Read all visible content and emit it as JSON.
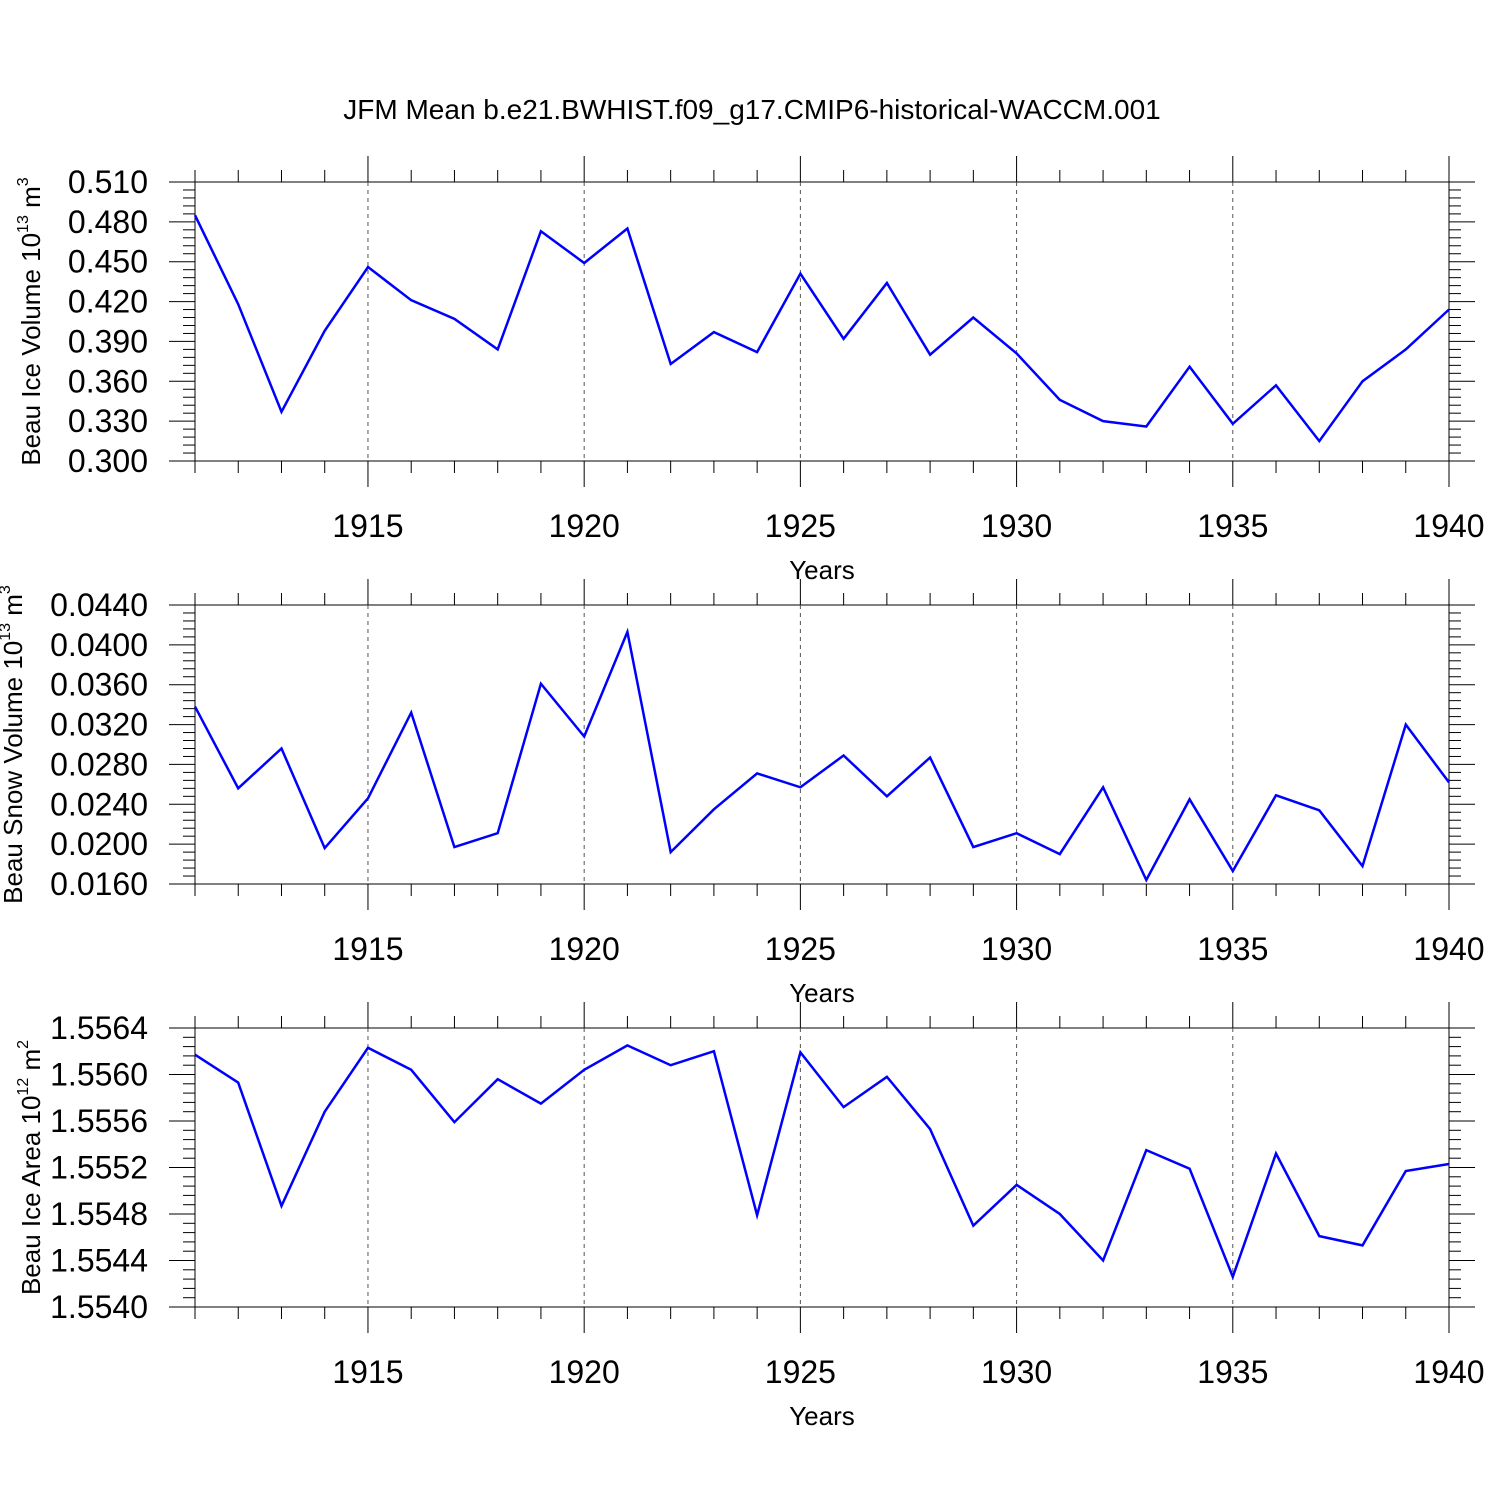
{
  "title": "JFM Mean b.e21.BWHIST.f09_g17.CMIP6-historical-WACCM.001",
  "line_color": "#0000ff",
  "chart_data": [
    {
      "type": "line",
      "ylabel_main": "Beau Ice Volume 10",
      "ylabel_exp": "13",
      "ylabel_unit": " m",
      "ylabel_unit_exp": "3",
      "xlabel": "Years",
      "xlim": [
        1911,
        1940
      ],
      "ylim": [
        0.3,
        0.51
      ],
      "x_ticks": [
        1915,
        1920,
        1925,
        1930,
        1935,
        1940
      ],
      "y_ticks": [
        0.3,
        0.33,
        0.36,
        0.39,
        0.42,
        0.45,
        0.48,
        0.51
      ],
      "y_tick_labels": [
        "0.300",
        "0.330",
        "0.360",
        "0.390",
        "0.420",
        "0.450",
        "0.480",
        "0.510"
      ],
      "x": [
        1911,
        1912,
        1913,
        1914,
        1915,
        1916,
        1917,
        1918,
        1919,
        1920,
        1921,
        1922,
        1923,
        1924,
        1925,
        1926,
        1927,
        1928,
        1929,
        1930,
        1931,
        1932,
        1933,
        1934,
        1935,
        1936,
        1937,
        1938,
        1939,
        1940
      ],
      "values": [
        0.485,
        0.418,
        0.337,
        0.398,
        0.446,
        0.421,
        0.407,
        0.384,
        0.473,
        0.449,
        0.475,
        0.373,
        0.397,
        0.382,
        0.441,
        0.392,
        0.434,
        0.38,
        0.408,
        0.381,
        0.346,
        0.33,
        0.326,
        0.371,
        0.328,
        0.357,
        0.315,
        0.36,
        0.384,
        0.414
      ]
    },
    {
      "type": "line",
      "ylabel_main": "Beau Snow Volume 10",
      "ylabel_exp": "13",
      "ylabel_unit": " m",
      "ylabel_unit_exp": "3",
      "xlabel": "Years",
      "xlim": [
        1911,
        1940
      ],
      "ylim": [
        0.016,
        0.044
      ],
      "x_ticks": [
        1915,
        1920,
        1925,
        1930,
        1935,
        1940
      ],
      "y_ticks": [
        0.016,
        0.02,
        0.024,
        0.028,
        0.032,
        0.036,
        0.04,
        0.044
      ],
      "y_tick_labels": [
        "0.0160",
        "0.0200",
        "0.0240",
        "0.0280",
        "0.0320",
        "0.0360",
        "0.0400",
        "0.0440"
      ],
      "x": [
        1911,
        1912,
        1913,
        1914,
        1915,
        1916,
        1917,
        1918,
        1919,
        1920,
        1921,
        1922,
        1923,
        1924,
        1925,
        1926,
        1927,
        1928,
        1929,
        1930,
        1931,
        1932,
        1933,
        1934,
        1935,
        1936,
        1937,
        1938,
        1939,
        1940
      ],
      "values": [
        0.0338,
        0.0256,
        0.0296,
        0.0196,
        0.0246,
        0.0332,
        0.0197,
        0.0211,
        0.0361,
        0.0308,
        0.0413,
        0.0192,
        0.0235,
        0.0271,
        0.0257,
        0.0289,
        0.0248,
        0.0287,
        0.0197,
        0.0211,
        0.019,
        0.0257,
        0.0164,
        0.0245,
        0.0173,
        0.0249,
        0.0234,
        0.0178,
        0.032,
        0.0262
      ]
    },
    {
      "type": "line",
      "ylabel_main": "Beau Ice Area 10",
      "ylabel_exp": "12",
      "ylabel_unit": " m",
      "ylabel_unit_exp": "2",
      "xlabel": "Years",
      "xlim": [
        1911,
        1940
      ],
      "ylim": [
        1.554,
        1.5564
      ],
      "x_ticks": [
        1915,
        1920,
        1925,
        1930,
        1935,
        1940
      ],
      "y_ticks": [
        1.554,
        1.5544,
        1.5548,
        1.5552,
        1.5556,
        1.556,
        1.5564
      ],
      "y_tick_labels": [
        "1.5540",
        "1.5544",
        "1.5548",
        "1.5552",
        "1.5556",
        "1.5560",
        "1.5564"
      ],
      "x": [
        1911,
        1912,
        1913,
        1914,
        1915,
        1916,
        1917,
        1918,
        1919,
        1920,
        1921,
        1922,
        1923,
        1924,
        1925,
        1926,
        1927,
        1928,
        1929,
        1930,
        1931,
        1932,
        1933,
        1934,
        1935,
        1936,
        1937,
        1938,
        1939,
        1940
      ],
      "values": [
        1.55617,
        1.55593,
        1.55487,
        1.55568,
        1.55623,
        1.55604,
        1.55559,
        1.55596,
        1.55575,
        1.55604,
        1.55625,
        1.55608,
        1.5562,
        1.55479,
        1.55619,
        1.55572,
        1.55598,
        1.55553,
        1.5547,
        1.55505,
        1.5548,
        1.5544,
        1.55535,
        1.55519,
        1.55426,
        1.55532,
        1.55461,
        1.55453,
        1.55517,
        1.55523
      ]
    }
  ]
}
